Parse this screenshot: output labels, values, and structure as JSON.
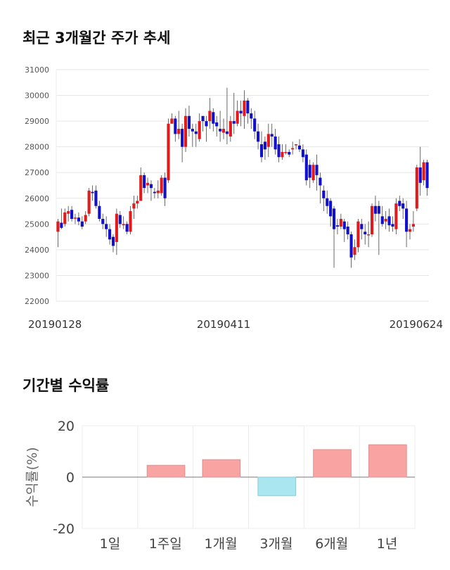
{
  "candle_section": {
    "title": "최근 3개월간 주가 추세"
  },
  "returns_section": {
    "title": "기간별 수익률"
  },
  "chart_data": [
    {
      "type": "candlestick",
      "title": "최근 3개월간 주가 추세",
      "ylim": [
        22000,
        31000
      ],
      "yticks": [
        22000,
        23000,
        24000,
        25000,
        26000,
        27000,
        28000,
        29000,
        30000,
        31000
      ],
      "xtick_labels": [
        {
          "label": "20190128",
          "index": 0
        },
        {
          "label": "20190411",
          "index": 48
        },
        {
          "label": "20190624",
          "index": 97
        }
      ],
      "colors": {
        "up": "#e01b1b",
        "down": "#1111cc"
      },
      "candles": [
        [
          24700,
          25100,
          24100,
          25200
        ],
        [
          25050,
          24850,
          24800,
          25600
        ],
        [
          25000,
          25450,
          24900,
          25600
        ],
        [
          25400,
          25500,
          25100,
          25700
        ],
        [
          25550,
          25200,
          25100,
          25700
        ],
        [
          25250,
          25250,
          25000,
          25400
        ],
        [
          25250,
          25100,
          24950,
          25450
        ],
        [
          25100,
          24900,
          24800,
          25300
        ],
        [
          25100,
          25350,
          25000,
          25500
        ],
        [
          25400,
          26300,
          25300,
          26400
        ],
        [
          26250,
          26200,
          25900,
          26500
        ],
        [
          26300,
          25700,
          25600,
          26500
        ],
        [
          25700,
          25200,
          25100,
          25900
        ],
        [
          25200,
          25000,
          24800,
          25400
        ],
        [
          25000,
          24800,
          24500,
          25300
        ],
        [
          24800,
          24400,
          24200,
          25000
        ],
        [
          24500,
          24150,
          23900,
          24600
        ],
        [
          24300,
          25400,
          23800,
          25600
        ],
        [
          25350,
          25000,
          24850,
          25500
        ],
        [
          24950,
          25000,
          24800,
          25300
        ],
        [
          25000,
          24700,
          24600,
          25100
        ],
        [
          24700,
          25500,
          24600,
          25700
        ],
        [
          25600,
          25800,
          25200,
          26100
        ],
        [
          25800,
          25900,
          25600,
          26100
        ],
        [
          25900,
          26900,
          25900,
          27200
        ],
        [
          26900,
          26400,
          26200,
          27000
        ],
        [
          26500,
          26600,
          26200,
          26800
        ],
        [
          26550,
          26400,
          25900,
          26700
        ],
        [
          26250,
          26200,
          26000,
          26400
        ],
        [
          26200,
          26300,
          26000,
          26700
        ],
        [
          26200,
          26800,
          26100,
          26900
        ],
        [
          26800,
          26000,
          25700,
          27000
        ],
        [
          26700,
          28900,
          26600,
          29100
        ],
        [
          28900,
          29100,
          28900,
          29300
        ],
        [
          29100,
          28500,
          28200,
          29200
        ],
        [
          28500,
          28700,
          28300,
          29400
        ],
        [
          28700,
          28000,
          27400,
          28900
        ],
        [
          28000,
          29200,
          27800,
          29500
        ],
        [
          29200,
          28700,
          28400,
          29600
        ],
        [
          28700,
          28600,
          28000,
          28900
        ],
        [
          28600,
          28500,
          28000,
          28900
        ],
        [
          28300,
          29000,
          28200,
          29300
        ],
        [
          29200,
          29000,
          28600,
          29200
        ],
        [
          29000,
          28800,
          28200,
          29200
        ],
        [
          29000,
          29400,
          28700,
          29900
        ],
        [
          29350,
          28900,
          28600,
          29500
        ],
        [
          28950,
          28800,
          28400,
          29200
        ],
        [
          28700,
          28600,
          28200,
          29400
        ],
        [
          28550,
          28700,
          28300,
          29100
        ],
        [
          28600,
          28500,
          28100,
          30300
        ],
        [
          28400,
          29000,
          28200,
          29200
        ],
        [
          29000,
          28900,
          28500,
          30100
        ],
        [
          28900,
          29400,
          28800,
          29800
        ],
        [
          29400,
          29300,
          28800,
          29800
        ],
        [
          29200,
          29800,
          28700,
          30200
        ],
        [
          29800,
          29300,
          28900,
          29900
        ],
        [
          29300,
          29100,
          28700,
          29500
        ],
        [
          29100,
          28600,
          28300,
          29400
        ],
        [
          28600,
          28200,
          27900,
          28900
        ],
        [
          28100,
          27600,
          27400,
          28600
        ],
        [
          28200,
          27900,
          27500,
          28400
        ],
        [
          28000,
          28500,
          27600,
          28900
        ],
        [
          28500,
          28400,
          28000,
          28900
        ],
        [
          28400,
          27900,
          27700,
          28700
        ],
        [
          28100,
          27600,
          27400,
          28400
        ],
        [
          27600,
          27800,
          27500,
          28100
        ],
        [
          27800,
          27800,
          27700,
          28100
        ],
        [
          27800,
          27700,
          27600,
          27900
        ],
        [
          27900,
          27950,
          27700,
          28200
        ],
        [
          28100,
          28100,
          27900,
          28100
        ],
        [
          28050,
          27900,
          27800,
          28300
        ],
        [
          27900,
          27600,
          27400,
          28100
        ],
        [
          27700,
          26700,
          26500,
          27900
        ],
        [
          27300,
          26800,
          26400,
          27500
        ],
        [
          26700,
          27300,
          26600,
          27400
        ],
        [
          27300,
          26900,
          26300,
          27700
        ],
        [
          26800,
          26500,
          25800,
          27000
        ],
        [
          26300,
          26000,
          25500,
          26500
        ],
        [
          26000,
          25700,
          25400,
          26300
        ],
        [
          25900,
          25300,
          24900,
          26000
        ],
        [
          25600,
          24800,
          23300,
          25700
        ],
        [
          24950,
          24900,
          24600,
          25200
        ],
        [
          24900,
          25200,
          24800,
          25400
        ],
        [
          25100,
          24800,
          24300,
          25200
        ],
        [
          24900,
          24600,
          24400,
          25100
        ],
        [
          24600,
          23700,
          23300,
          24700
        ],
        [
          23800,
          24100,
          23600,
          24400
        ],
        [
          24100,
          25100,
          23900,
          25200
        ],
        [
          25000,
          24800,
          24400,
          25200
        ],
        [
          24700,
          24600,
          24200,
          25000
        ],
        [
          24600,
          24600,
          24100,
          25100
        ],
        [
          24600,
          25700,
          24500,
          25800
        ],
        [
          25700,
          25400,
          25100,
          26100
        ],
        [
          25700,
          25400,
          23800,
          25900
        ],
        [
          25300,
          25000,
          24900,
          25700
        ],
        [
          25100,
          25200,
          24800,
          25500
        ],
        [
          25300,
          24950,
          24700,
          25600
        ],
        [
          25000,
          24900,
          24700,
          25300
        ],
        [
          24800,
          25800,
          24600,
          26000
        ],
        [
          25900,
          25700,
          25500,
          26100
        ],
        [
          25800,
          25600,
          25200,
          26000
        ],
        [
          25600,
          24700,
          24100,
          25900
        ],
        [
          24700,
          24800,
          24400,
          25000
        ],
        [
          24900,
          25000,
          24700,
          25500
        ],
        [
          25600,
          27200,
          25500,
          27300
        ],
        [
          27200,
          26600,
          26100,
          28000
        ],
        [
          26700,
          27400,
          26500,
          27500
        ],
        [
          27400,
          26400,
          26100,
          27500
        ]
      ]
    },
    {
      "type": "bar",
      "title": "기간별 수익률",
      "ylabel": "수익률(%)",
      "ylim": [
        -20,
        20
      ],
      "yticks": [
        20,
        0,
        -20
      ],
      "categories": [
        "1일",
        "1주일",
        "1개월",
        "3개월",
        "6개월",
        "1년"
      ],
      "values": [
        0,
        4.6,
        6.8,
        -7.2,
        10.7,
        12.6
      ],
      "colors": {
        "positive": "#f9a3a3",
        "positive_edge": "#e28c8c",
        "negative": "#aae6ef",
        "negative_edge": "#8dcbd6"
      }
    }
  ]
}
